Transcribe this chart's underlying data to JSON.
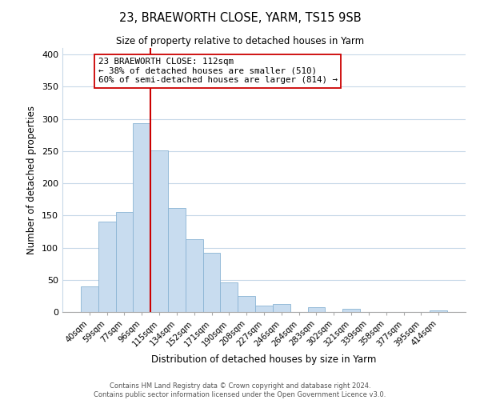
{
  "title1": "23, BRAEWORTH CLOSE, YARM, TS15 9SB",
  "title2": "Size of property relative to detached houses in Yarm",
  "xlabel": "Distribution of detached houses by size in Yarm",
  "ylabel": "Number of detached properties",
  "bar_labels": [
    "40sqm",
    "59sqm",
    "77sqm",
    "96sqm",
    "115sqm",
    "134sqm",
    "152sqm",
    "171sqm",
    "190sqm",
    "208sqm",
    "227sqm",
    "246sqm",
    "264sqm",
    "283sqm",
    "302sqm",
    "321sqm",
    "339sqm",
    "358sqm",
    "377sqm",
    "395sqm",
    "414sqm"
  ],
  "bar_values": [
    40,
    140,
    155,
    293,
    251,
    161,
    113,
    92,
    46,
    25,
    10,
    13,
    0,
    8,
    0,
    5,
    0,
    0,
    0,
    0,
    3
  ],
  "bar_color": "#c8dcef",
  "bar_edge_color": "#8ab4d4",
  "vline_x_idx": 3.5,
  "vline_color": "#cc0000",
  "annotation_lines": [
    "23 BRAEWORTH CLOSE: 112sqm",
    "← 38% of detached houses are smaller (510)",
    "60% of semi-detached houses are larger (814) →"
  ],
  "ylim": [
    0,
    410
  ],
  "yticks": [
    0,
    50,
    100,
    150,
    200,
    250,
    300,
    350,
    400
  ],
  "footer1": "Contains HM Land Registry data © Crown copyright and database right 2024.",
  "footer2": "Contains public sector information licensed under the Open Government Licence v3.0.",
  "bg_color": "#ffffff",
  "grid_color": "#c8d8e8"
}
